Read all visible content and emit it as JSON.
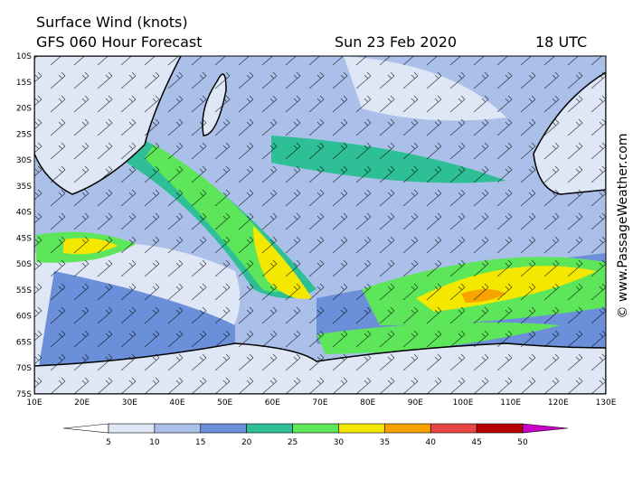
{
  "header": {
    "title": "Surface Wind (knots)",
    "model": "GFS 060 Hour Forecast",
    "date": "Sun 23 Feb 2020",
    "time": "18 UTC"
  },
  "credit": "© www.PassageWeather.com",
  "map": {
    "lat_labels": [
      "10S",
      "15S",
      "20S",
      "25S",
      "30S",
      "35S",
      "40S",
      "45S",
      "50S",
      "55S",
      "60S",
      "65S",
      "70S",
      "75S"
    ],
    "lon_labels": [
      "10E",
      "20E",
      "30E",
      "40E",
      "50E",
      "60E",
      "70E",
      "80E",
      "90E",
      "100E",
      "110E",
      "120E",
      "130E"
    ]
  },
  "colorbar": {
    "ticks": [
      5,
      10,
      15,
      20,
      25,
      30,
      35,
      40,
      45,
      50
    ],
    "colors": [
      "#ffffff",
      "#dfe7f6",
      "#aac0e8",
      "#6b8fd8",
      "#2ebf96",
      "#5ee65a",
      "#f5e800",
      "#f7a400",
      "#e84545",
      "#b40000",
      "#c800c8"
    ]
  }
}
